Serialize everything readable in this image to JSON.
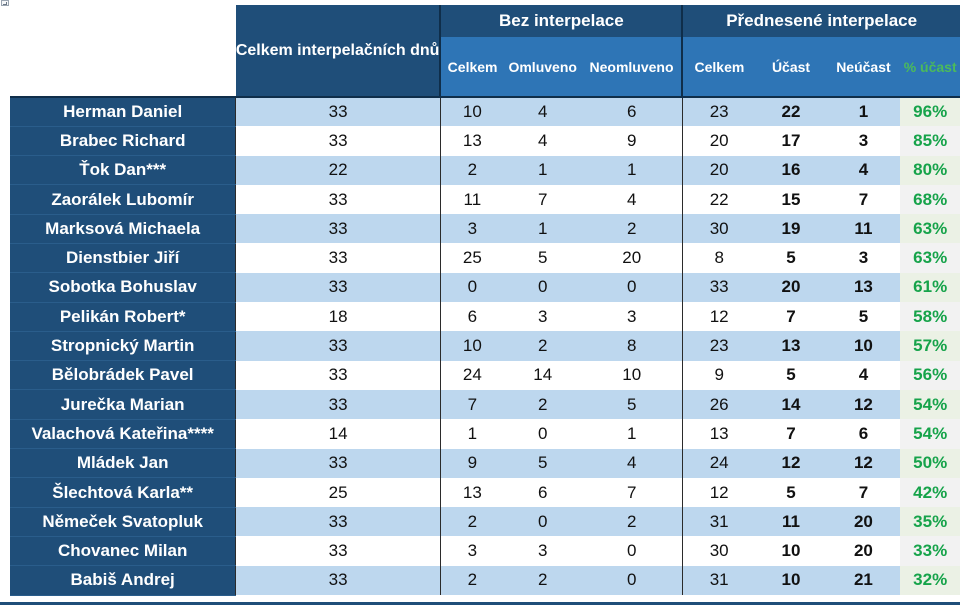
{
  "header": {
    "celkem_dnu": "Celkem interpelačních dnů",
    "bez_interpelace": "Bez interpelace",
    "prednesene": "Přednesené interpelace",
    "sub_bez": [
      "Celkem",
      "Omluveno",
      "Neomluveno"
    ],
    "sub_pred": [
      "Celkem",
      "Účast",
      "Neúčast",
      "% účast"
    ]
  },
  "colors": {
    "header_dark": "#1f4e79",
    "header_medium": "#2e75b6",
    "row_stripe": "#bdd7ee",
    "percent_green": "#16a34a"
  },
  "rows": [
    {
      "name": "Herman Daniel",
      "celkem_dnu": "33",
      "bez_celkem": "10",
      "omluveno": "4",
      "neomluveno": "6",
      "pred_celkem": "23",
      "ucast": "22",
      "neucast": "1",
      "pct": "96%"
    },
    {
      "name": "Brabec Richard",
      "celkem_dnu": "33",
      "bez_celkem": "13",
      "omluveno": "4",
      "neomluveno": "9",
      "pred_celkem": "20",
      "ucast": "17",
      "neucast": "3",
      "pct": "85%"
    },
    {
      "name": "Ťok Dan***",
      "celkem_dnu": "22",
      "bez_celkem": "2",
      "omluveno": "1",
      "neomluveno": "1",
      "pred_celkem": "20",
      "ucast": "16",
      "neucast": "4",
      "pct": "80%"
    },
    {
      "name": "Zaorálek Lubomír",
      "celkem_dnu": "33",
      "bez_celkem": "11",
      "omluveno": "7",
      "neomluveno": "4",
      "pred_celkem": "22",
      "ucast": "15",
      "neucast": "7",
      "pct": "68%"
    },
    {
      "name": "Marksová Michaela",
      "celkem_dnu": "33",
      "bez_celkem": "3",
      "omluveno": "1",
      "neomluveno": "2",
      "pred_celkem": "30",
      "ucast": "19",
      "neucast": "11",
      "pct": "63%"
    },
    {
      "name": "Dienstbier Jiří",
      "celkem_dnu": "33",
      "bez_celkem": "25",
      "omluveno": "5",
      "neomluveno": "20",
      "pred_celkem": "8",
      "ucast": "5",
      "neucast": "3",
      "pct": "63%"
    },
    {
      "name": "Sobotka Bohuslav",
      "celkem_dnu": "33",
      "bez_celkem": "0",
      "omluveno": "0",
      "neomluveno": "0",
      "pred_celkem": "33",
      "ucast": "20",
      "neucast": "13",
      "pct": "61%"
    },
    {
      "name": "Pelikán Robert*",
      "celkem_dnu": "18",
      "bez_celkem": "6",
      "omluveno": "3",
      "neomluveno": "3",
      "pred_celkem": "12",
      "ucast": "7",
      "neucast": "5",
      "pct": "58%"
    },
    {
      "name": "Stropnický Martin",
      "celkem_dnu": "33",
      "bez_celkem": "10",
      "omluveno": "2",
      "neomluveno": "8",
      "pred_celkem": "23",
      "ucast": "13",
      "neucast": "10",
      "pct": "57%"
    },
    {
      "name": "Bělobrádek Pavel",
      "celkem_dnu": "33",
      "bez_celkem": "24",
      "omluveno": "14",
      "neomluveno": "10",
      "pred_celkem": "9",
      "ucast": "5",
      "neucast": "4",
      "pct": "56%"
    },
    {
      "name": "Jurečka Marian",
      "celkem_dnu": "33",
      "bez_celkem": "7",
      "omluveno": "2",
      "neomluveno": "5",
      "pred_celkem": "26",
      "ucast": "14",
      "neucast": "12",
      "pct": "54%"
    },
    {
      "name": "Valachová Kateřina****",
      "celkem_dnu": "14",
      "bez_celkem": "1",
      "omluveno": "0",
      "neomluveno": "1",
      "pred_celkem": "13",
      "ucast": "7",
      "neucast": "6",
      "pct": "54%"
    },
    {
      "name": "Mládek Jan",
      "celkem_dnu": "33",
      "bez_celkem": "9",
      "omluveno": "5",
      "neomluveno": "4",
      "pred_celkem": "24",
      "ucast": "12",
      "neucast": "12",
      "pct": "50%"
    },
    {
      "name": "Šlechtová Karla**",
      "celkem_dnu": "25",
      "bez_celkem": "13",
      "omluveno": "6",
      "neomluveno": "7",
      "pred_celkem": "12",
      "ucast": "5",
      "neucast": "7",
      "pct": "42%"
    },
    {
      "name": "Němeček Svatopluk",
      "celkem_dnu": "33",
      "bez_celkem": "2",
      "omluveno": "0",
      "neomluveno": "2",
      "pred_celkem": "31",
      "ucast": "11",
      "neucast": "20",
      "pct": "35%"
    },
    {
      "name": "Chovanec Milan",
      "celkem_dnu": "33",
      "bez_celkem": "3",
      "omluveno": "3",
      "neomluveno": "0",
      "pred_celkem": "30",
      "ucast": "10",
      "neucast": "20",
      "pct": "33%"
    },
    {
      "name": "Babiš Andrej",
      "celkem_dnu": "33",
      "bez_celkem": "2",
      "omluveno": "2",
      "neomluveno": "0",
      "pred_celkem": "31",
      "ucast": "10",
      "neucast": "21",
      "pct": "32%"
    }
  ]
}
